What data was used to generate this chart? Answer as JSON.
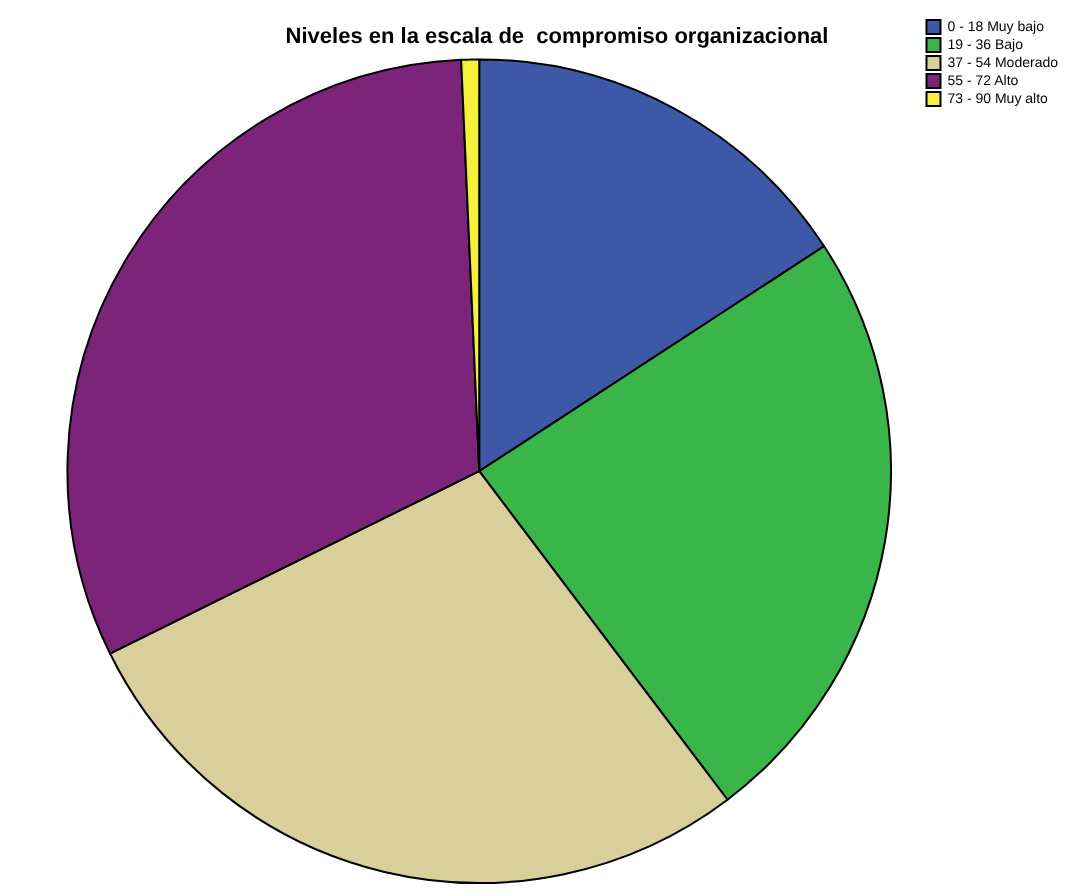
{
  "chart_data": {
    "type": "pie",
    "title": "Niveles en la escala de  compromiso organizacional",
    "categories": [
      "0 - 18 Muy bajo",
      "19 - 36 Bajo",
      "37 - 54 Moderado",
      "55 - 72 Alto",
      "73 - 90 Muy alto"
    ],
    "values": [
      15.8,
      23.9,
      28,
      31.6,
      0.7
    ],
    "colors": [
      "#3e58a8",
      "#39b54a",
      "#d8cf9a",
      "#7b2479",
      "#f5f03c"
    ],
    "legend": "top right"
  }
}
